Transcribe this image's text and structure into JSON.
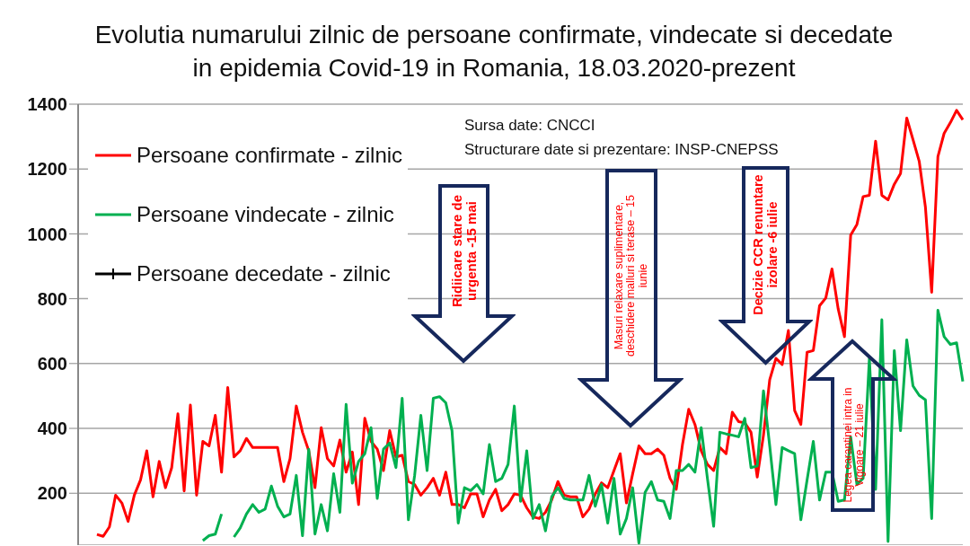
{
  "chart_data": {
    "type": "line",
    "title": "Evolutia numarului zilnic de persoane confirmate, vindecate si decedate in epidemia Covid-19 in Romania, 18.03.2020-prezent",
    "categories": [
      null,
      null,
      null,
      null,
      null,
      null,
      null,
      null,
      null,
      null,
      null,
      null,
      null,
      null,
      null,
      null,
      null,
      null,
      null,
      null,
      null,
      null,
      null,
      null,
      null,
      null,
      null,
      null,
      null,
      null,
      null,
      null,
      null,
      null,
      null,
      null,
      null,
      null,
      null,
      null,
      null,
      null,
      null,
      null,
      null,
      null,
      null,
      null,
      null,
      null,
      null,
      null,
      null,
      null,
      null,
      null,
      null,
      null,
      null,
      null,
      null,
      null,
      null,
      null,
      null,
      null,
      null,
      null,
      null,
      null,
      null,
      null,
      null,
      null,
      null,
      null,
      null,
      null,
      null,
      null,
      null,
      null,
      null,
      null,
      null,
      null,
      null,
      null,
      null,
      null,
      null,
      null,
      null,
      null,
      null,
      null,
      null,
      null,
      null,
      null,
      null,
      null,
      null,
      null,
      null,
      null,
      null,
      null,
      null,
      null,
      null,
      null,
      null,
      null,
      null,
      null,
      null,
      null,
      null,
      null,
      null,
      null,
      null,
      null,
      null,
      null,
      null,
      null,
      null,
      null,
      null,
      null,
      null,
      null,
      null,
      null,
      null,
      null,
      null,
      null,
      null
    ],
    "series": [
      {
        "name": "Persoane confirmate - zilnic",
        "color": "#ff0000",
        "values": [
          null,
          73,
          67,
          96,
          194,
          170,
          113,
          194,
          241,
          331,
          189,
          298,
          217,
          279,
          445,
          207,
          472,
          194,
          360,
          346,
          440,
          265,
          526,
          312,
          331,
          369,
          341,
          341,
          341,
          341,
          341,
          236,
          307,
          469,
          388,
          331,
          217,
          402,
          307,
          284,
          364,
          265,
          327,
          165,
          431,
          360,
          336,
          270,
          393,
          312,
          317,
          236,
          227,
          194,
          217,
          246,
          194,
          265,
          165,
          165,
          155,
          198,
          198,
          127,
          179,
          212,
          146,
          165,
          198,
          194,
          155,
          127,
          122,
          141,
          179,
          236,
          194,
          189,
          189,
          127,
          151,
          198,
          232,
          217,
          270,
          322,
          170,
          260,
          346,
          322,
          322,
          336,
          317,
          246,
          212,
          350,
          459,
          412,
          331,
          289,
          270,
          341,
          322,
          450,
          421,
          417,
          388,
          250,
          379,
          550,
          616,
          597,
          702,
          455,
          412,
          635,
          640,
          778,
          802,
          892,
          768,
          683,
          996,
          1029,
          1115,
          1119,
          1286,
          1119,
          1105,
          1153,
          1186,
          1357,
          1291,
          1224,
          1082,
          820,
          1238,
          1310,
          1343,
          1381,
          1352
        ]
      },
      {
        "name": "Persoane vindecate - zilnic",
        "color": "#00b050",
        "values": [
          null,
          null,
          null,
          null,
          null,
          null,
          null,
          null,
          null,
          null,
          null,
          null,
          null,
          null,
          null,
          null,
          null,
          null,
          54,
          69,
          74,
          136,
          null,
          65,
          93,
          136,
          165,
          141,
          151,
          222,
          160,
          127,
          136,
          255,
          69,
          336,
          74,
          165,
          84,
          260,
          141,
          474,
          231,
          298,
          322,
          402,
          184,
          336,
          355,
          279,
          493,
          118,
          255,
          440,
          270,
          493,
          498,
          479,
          393,
          108,
          217,
          208,
          227,
          198,
          350,
          236,
          246,
          289,
          469,
          175,
          331,
          122,
          165,
          84,
          189,
          217,
          184,
          179,
          179,
          179,
          255,
          160,
          227,
          108,
          246,
          74,
          122,
          217,
          46,
          203,
          236,
          179,
          175,
          122,
          270,
          270,
          289,
          265,
          402,
          246,
          98,
          388,
          383,
          379,
          374,
          431,
          279,
          284,
          516,
          346,
          165,
          341,
          331,
          322,
          118,
          241,
          360,
          179,
          265,
          265,
          175,
          179,
          374,
          227,
          246,
          616,
          212,
          735,
          51,
          640,
          393,
          673,
          531,
          502,
          488,
          122,
          764,
          683,
          659,
          664,
          545
        ]
      },
      {
        "name": "Persoane decedate - zilnic",
        "color": "#000000",
        "marker": "cross",
        "values": [
          null,
          null,
          null,
          null,
          null,
          null,
          null,
          null,
          null,
          null,
          null,
          null,
          null,
          null,
          null,
          null,
          null,
          null,
          null,
          null,
          null,
          null,
          null,
          null,
          null,
          null,
          null,
          null,
          null,
          null,
          null,
          null,
          null,
          null,
          null,
          null,
          null,
          null,
          null,
          null,
          null,
          null,
          null,
          null,
          null,
          null,
          null,
          null,
          null,
          null,
          null,
          null,
          null,
          null,
          null,
          null,
          null,
          null,
          null,
          null,
          null,
          null,
          null,
          null,
          null,
          null,
          null,
          null,
          null,
          null,
          null,
          null,
          null,
          null,
          null,
          null,
          null,
          null,
          null,
          null,
          null,
          null,
          null,
          null,
          null,
          null,
          null,
          null,
          null,
          null,
          null,
          null,
          null,
          null,
          null,
          null,
          null,
          null,
          null,
          null,
          null,
          null,
          null,
          null,
          null,
          null,
          null,
          null,
          null,
          null,
          null,
          null,
          null,
          null,
          null,
          null,
          null,
          null,
          null,
          null,
          null,
          null,
          null,
          null,
          null,
          null,
          null,
          null,
          null,
          null,
          null,
          null,
          null,
          null,
          null,
          null,
          null,
          null,
          null,
          null,
          null
        ]
      }
    ],
    "ylim": [
      40,
      1400
    ],
    "yticks": [
      200,
      400,
      600,
      800,
      1000,
      1200,
      1400
    ],
    "grid": "y",
    "legend": "top left",
    "annotations": [
      "Sursa date: CNCCI",
      "Structurare date si prezentare: INSP-CNEPSS",
      "Ridiicare stare de urgenta -15 mai",
      "Masuri relaxare suplimentare, deschidere malluri si terase – 15 iunie",
      "Decizie CCR renuntare izolare -6 iulie",
      "Legea carantinei intra in Vigoare – 21 iulie"
    ]
  }
}
